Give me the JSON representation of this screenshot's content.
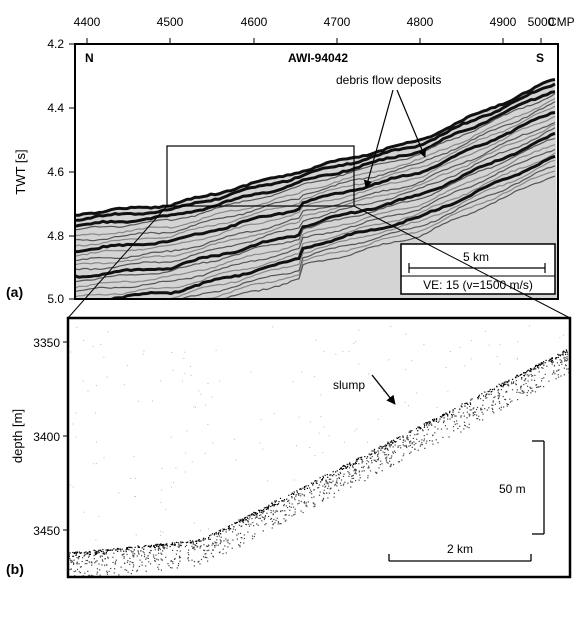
{
  "panel_a": {
    "letter": "(a)",
    "profile": "AWI-94042",
    "north": "N",
    "south": "S",
    "x_axis_unit": "CMP",
    "x_ticks": [
      "4400",
      "4500",
      "4600",
      "4700",
      "4800",
      "4900",
      "5000"
    ],
    "y_label": "TWT [s]",
    "y_ticks": [
      "4.2",
      "4.4",
      "4.6",
      "4.8",
      "5.0"
    ],
    "annotation": "debris flow deposits",
    "scale_bar": "5 km",
    "exaggeration": "VE: 15 (v=1500 m/s)"
  },
  "panel_b": {
    "letter": "(b)",
    "y_label": "depth [m]",
    "y_ticks": [
      "3350",
      "3400",
      "3450"
    ],
    "annotation": "slump",
    "vertical_scale": "50 m",
    "horizontal_scale": "2 km"
  }
}
